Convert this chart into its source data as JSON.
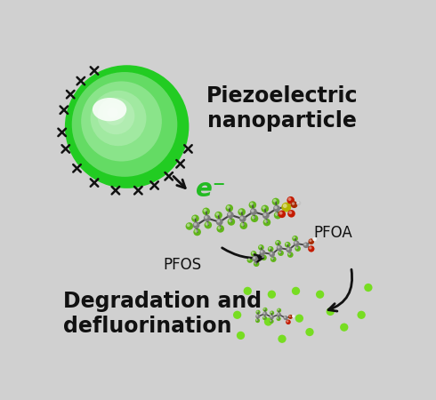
{
  "background_color": "#d0d0d0",
  "title": "Piezoelectric\nnanoparticle",
  "title_fontsize": 17,
  "label_degradation": "Degradation and\ndefluorination",
  "label_degradation_fontsize": 17,
  "label_PFOS": "PFOS",
  "label_PFOA": "PFOA",
  "label_electron": "e⁻",
  "sphere_color_outer": "#22cc22",
  "sphere_color_mid": "#44ee44",
  "sphere_color_inner": "#aaffaa",
  "fluorine_color": "#77dd22",
  "carbon_color": "#999999",
  "sulfur_color": "#dddd00",
  "oxygen_color": "#ee2200",
  "oxygen2_color": "#cc3300",
  "white_color": "#f0f0f0",
  "arrow_color": "#111111",
  "text_color": "#111111",
  "electron_color": "#22bb22"
}
